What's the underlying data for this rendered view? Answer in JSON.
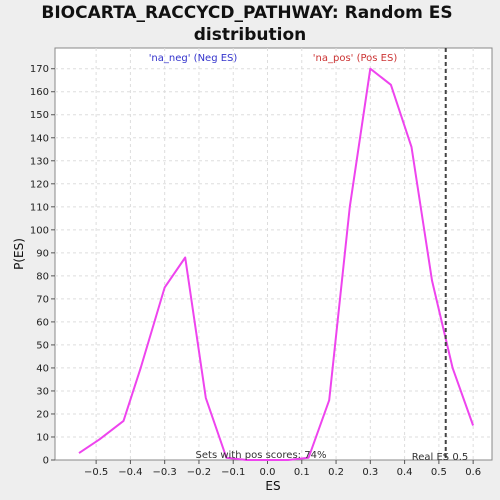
{
  "chart_data": {
    "type": "line",
    "title_line1": "BIOCARTA_RACCYCD_PATHWAY: Random ES",
    "title_line2": "distribution",
    "xlabel": "ES",
    "ylabel": "P(ES)",
    "xlim": [
      -0.62,
      0.655
    ],
    "ylim": [
      0,
      179
    ],
    "x_ticks": [
      -0.5,
      -0.4,
      -0.3,
      -0.2,
      -0.1,
      0.0,
      0.1,
      0.2,
      0.3,
      0.4,
      0.5,
      0.6
    ],
    "x_tick_labels": [
      "−0.5",
      "−0.4",
      "−0.3",
      "−0.2",
      "−0.1",
      "0.0",
      "0.1",
      "0.2",
      "0.3",
      "0.4",
      "0.5",
      "0.6"
    ],
    "y_ticks": [
      0,
      10,
      20,
      30,
      40,
      50,
      60,
      70,
      80,
      90,
      100,
      110,
      120,
      130,
      140,
      150,
      160,
      170
    ],
    "y_tick_labels": [
      "0",
      "10",
      "20",
      "30",
      "40",
      "50",
      "60",
      "70",
      "80",
      "90",
      "100",
      "110",
      "120",
      "130",
      "140",
      "150",
      "160",
      "170"
    ],
    "grid": true,
    "series": [
      {
        "color": "#ee44ee",
        "x": [
          -0.55,
          -0.49,
          -0.42,
          -0.37,
          -0.3,
          -0.24,
          -0.18,
          -0.12,
          -0.06,
          0.0,
          0.06,
          0.12,
          0.18,
          0.24,
          0.3,
          0.36,
          0.42,
          0.48,
          0.54,
          0.6
        ],
        "y": [
          3,
          9,
          17,
          40,
          75,
          88,
          27,
          1,
          0,
          0,
          0,
          1,
          26,
          110,
          170,
          163,
          136,
          78,
          40,
          15
        ]
      }
    ],
    "real_es": 0.52,
    "annotations": {
      "neg_label": "'na_neg' (Neg ES)",
      "pos_label": "'na_pos' (Pos ES)",
      "sets_label": "Sets with pos scores: 74%",
      "real_es_label": "Real ES 0.5"
    },
    "colors": {
      "background": "#eeeeee",
      "plot_bg": "#ffffff",
      "line": "#ee44ee",
      "neg": "#3333cc",
      "pos": "#cc3333",
      "grid": "#dddddd",
      "real_es_line": "#444444"
    }
  }
}
